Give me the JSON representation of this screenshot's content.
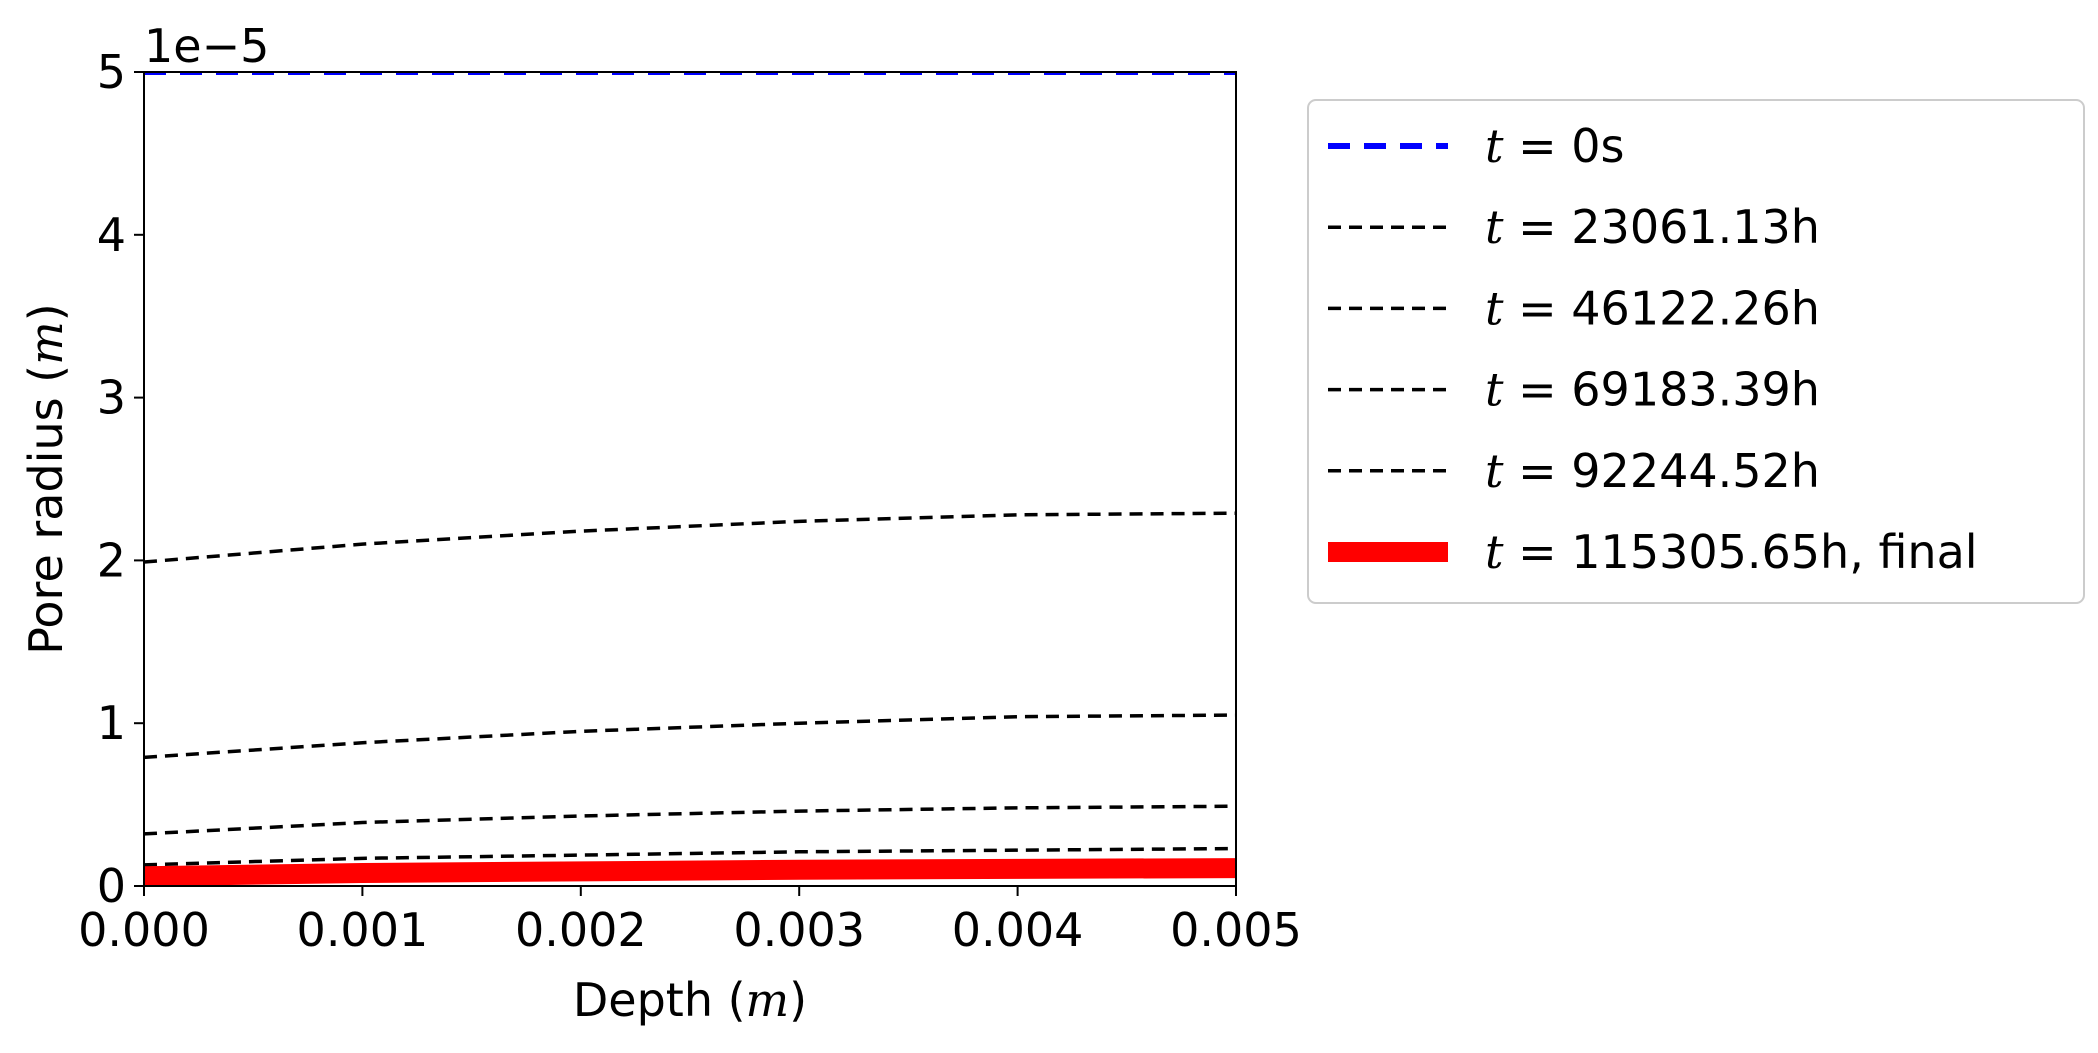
{
  "chart_data": {
    "type": "line",
    "xlabel_prefix": "Depth (",
    "xlabel_var": "m",
    "xlabel_suffix": ")",
    "ylabel_prefix": "Pore radius (",
    "ylabel_var": "m",
    "ylabel_suffix": ")",
    "y_offset_text": "1e−5",
    "xlim": [
      0.0,
      0.005
    ],
    "ylim": [
      0,
      5e-05
    ],
    "x_ticks": [
      0.0,
      0.001,
      0.002,
      0.003,
      0.004,
      0.005
    ],
    "x_tick_labels": [
      "0.000",
      "0.001",
      "0.002",
      "0.003",
      "0.004",
      "0.005"
    ],
    "y_ticks": [
      0,
      1e-05,
      2e-05,
      3e-05,
      4e-05,
      5e-05
    ],
    "y_tick_labels": [
      "0",
      "1",
      "2",
      "3",
      "4",
      "5"
    ],
    "grid": false,
    "legend_position": "outside-right",
    "series": [
      {
        "name": "t = 0s",
        "legend_var": "t",
        "legend_rest": " = 0s",
        "color": "#0000ff",
        "style": "dashed-thick",
        "x": [
          0.0,
          0.005
        ],
        "y": [
          5e-05,
          5e-05
        ]
      },
      {
        "name": "t = 23061.13h",
        "legend_var": "t",
        "legend_rest": " = 23061.13h",
        "color": "#000000",
        "style": "dashed",
        "x": [
          0.0,
          0.001,
          0.002,
          0.003,
          0.004,
          0.005
        ],
        "y": [
          1.99e-05,
          2.1e-05,
          2.18e-05,
          2.24e-05,
          2.28e-05,
          2.29e-05
        ]
      },
      {
        "name": "t = 46122.26h",
        "legend_var": "t",
        "legend_rest": " = 46122.26h",
        "color": "#000000",
        "style": "dashed",
        "x": [
          0.0,
          0.001,
          0.002,
          0.003,
          0.004,
          0.005
        ],
        "y": [
          7.9e-06,
          8.8e-06,
          9.5e-06,
          1e-05,
          1.04e-05,
          1.05e-05
        ]
      },
      {
        "name": "t = 69183.39h",
        "legend_var": "t",
        "legend_rest": " = 69183.39h",
        "color": "#000000",
        "style": "dashed",
        "x": [
          0.0,
          0.001,
          0.002,
          0.003,
          0.004,
          0.005
        ],
        "y": [
          3.2e-06,
          3.9e-06,
          4.3e-06,
          4.6e-06,
          4.8e-06,
          4.9e-06
        ]
      },
      {
        "name": "t = 92244.52h",
        "legend_var": "t",
        "legend_rest": " = 92244.52h",
        "color": "#000000",
        "style": "dashed",
        "x": [
          0.0,
          0.001,
          0.002,
          0.003,
          0.004,
          0.005
        ],
        "y": [
          1.3e-06,
          1.7e-06,
          1.9e-06,
          2.1e-06,
          2.2e-06,
          2.3e-06
        ]
      },
      {
        "name": "t = 115305.65h, final",
        "legend_var": "t",
        "legend_rest": " = 115305.65h, final",
        "color": "#ff0000",
        "style": "solid-thick",
        "x": [
          0.0,
          0.001,
          0.002,
          0.003,
          0.004,
          0.005
        ],
        "y": [
          6e-07,
          8e-07,
          9e-07,
          1e-06,
          1.05e-06,
          1.1e-06
        ]
      }
    ]
  }
}
